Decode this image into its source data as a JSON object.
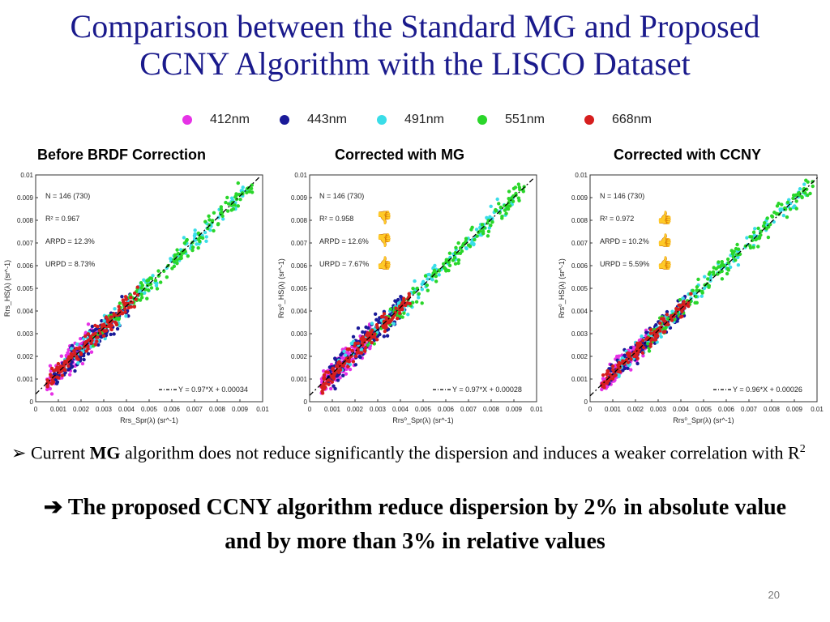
{
  "slide": {
    "title_line1": "Comparison between the Standard MG and Proposed",
    "title_line2": "CCNY Algorithm with the LISCO Dataset",
    "bullet_marker": "➢",
    "bullet_prefix": "Current ",
    "bullet_bold": "MG",
    "bullet_rest": " algorithm does not reduce significantly the dispersion and induces a weaker correlation with R",
    "bullet_sup": "2",
    "conclusion_arrow": "➔",
    "conclusion_text": "The proposed CCNY algorithm reduce dispersion by 2% in absolute value and by more than 3% in relative values",
    "page_number": "20"
  },
  "legend": [
    {
      "label": "412nm",
      "color": "#e632e6"
    },
    {
      "label": "443nm",
      "color": "#1a1a99"
    },
    {
      "label": "491nm",
      "color": "#3adde8"
    },
    {
      "label": "551nm",
      "color": "#2ad62a"
    },
    {
      "label": "668nm",
      "color": "#d61e1e"
    }
  ],
  "chart_data": [
    {
      "type": "scatter",
      "title": "Before BRDF Correction",
      "xlabel": "Rrs_Spr(λ) (sr^-1)",
      "ylabel": "Rrs_HS(λ) (sr^-1)",
      "xlim": [
        0,
        0.01
      ],
      "ylim": [
        0,
        0.01
      ],
      "xticks": [
        "0",
        "0.001",
        "0.002",
        "0.003",
        "0.004",
        "0.005",
        "0.006",
        "0.007",
        "0.008",
        "0.009",
        "0.01"
      ],
      "yticks": [
        "0",
        "0.001",
        "0.002",
        "0.003",
        "0.004",
        "0.005",
        "0.006",
        "0.007",
        "0.008",
        "0.009",
        "0.01"
      ],
      "stats": [
        "N = 146 (730)",
        "R² = 0.967",
        "ARPD = 12.3%",
        "URPD = 8.73%"
      ],
      "thumbs": [],
      "fit": {
        "label": "Y = 0.97*X + 0.00034",
        "slope": 0.97,
        "intercept": 0.00034
      },
      "series": [
        {
          "name": "412nm",
          "x_range": [
            0.0005,
            0.0027
          ],
          "spread": 0.00055,
          "count": 146
        },
        {
          "name": "443nm",
          "x_range": [
            0.0008,
            0.0042
          ],
          "spread": 0.0006,
          "count": 146
        },
        {
          "name": "491nm",
          "x_range": [
            0.0012,
            0.0095
          ],
          "spread": 0.00045,
          "count": 146
        },
        {
          "name": "551nm",
          "x_range": [
            0.0025,
            0.0098
          ],
          "spread": 0.0005,
          "count": 146
        },
        {
          "name": "668nm",
          "x_range": [
            0.0005,
            0.0045
          ],
          "spread": 0.0004,
          "count": 146
        }
      ]
    },
    {
      "type": "scatter",
      "title": "Corrected with MG",
      "xlabel": "Rrs⁰_Spr(λ) (sr^-1)",
      "ylabel": "Rrs⁰_HS(λ) (sr^-1)",
      "xlim": [
        0,
        0.01
      ],
      "ylim": [
        0,
        0.01
      ],
      "xticks": [
        "0",
        "0.001",
        "0.002",
        "0.003",
        "0.004",
        "0.005",
        "0.006",
        "0.007",
        "0.008",
        "0.009",
        "0.01"
      ],
      "yticks": [
        "0",
        "0.001",
        "0.002",
        "0.003",
        "0.004",
        "0.005",
        "0.006",
        "0.007",
        "0.008",
        "0.009",
        "0.01"
      ],
      "stats": [
        "N = 146 (730)",
        "R² = 0.958",
        "ARPD = 12.6%",
        "URPD = 7.67%"
      ],
      "thumbs": [
        "down",
        "down",
        "up"
      ],
      "fit": {
        "label": "Y = 0.97*X + 0.00028",
        "slope": 0.97,
        "intercept": 0.00028
      },
      "series": [
        {
          "name": "412nm",
          "x_range": [
            0.0005,
            0.0027
          ],
          "spread": 0.00055,
          "count": 146
        },
        {
          "name": "443nm",
          "x_range": [
            0.0008,
            0.0042
          ],
          "spread": 0.0006,
          "count": 146
        },
        {
          "name": "491nm",
          "x_range": [
            0.0012,
            0.009
          ],
          "spread": 0.00045,
          "count": 146
        },
        {
          "name": "551nm",
          "x_range": [
            0.0025,
            0.0095
          ],
          "spread": 0.0005,
          "count": 146
        },
        {
          "name": "668nm",
          "x_range": [
            0.0005,
            0.0045
          ],
          "spread": 0.0004,
          "count": 146
        }
      ]
    },
    {
      "type": "scatter",
      "title": "Corrected with CCNY",
      "xlabel": "Rrs⁰_Spr(λ) (sr^-1)",
      "ylabel": "Rrs⁰_HS(λ) (sr^-1)",
      "xlim": [
        0,
        0.01
      ],
      "ylim": [
        0,
        0.01
      ],
      "xticks": [
        "0",
        "0.001",
        "0.002",
        "0.003",
        "0.004",
        "0.005",
        "0.006",
        "0.007",
        "0.008",
        "0.009",
        "0.01"
      ],
      "yticks": [
        "0",
        "0.001",
        "0.002",
        "0.003",
        "0.004",
        "0.005",
        "0.006",
        "0.007",
        "0.008",
        "0.009",
        "0.01"
      ],
      "stats": [
        "N = 146 (730)",
        "R² = 0.972",
        "ARPD = 10.2%",
        "URPD = 5.59%"
      ],
      "thumbs": [
        "up",
        "up",
        "up"
      ],
      "fit": {
        "label": "Y = 0.96*X + 0.00026",
        "slope": 0.96,
        "intercept": 0.00026
      },
      "series": [
        {
          "name": "412nm",
          "x_range": [
            0.0005,
            0.0027
          ],
          "spread": 0.00045,
          "count": 146
        },
        {
          "name": "443nm",
          "x_range": [
            0.0008,
            0.0042
          ],
          "spread": 0.0005,
          "count": 146
        },
        {
          "name": "491nm",
          "x_range": [
            0.0012,
            0.0098
          ],
          "spread": 0.0004,
          "count": 146
        },
        {
          "name": "551nm",
          "x_range": [
            0.0025,
            0.0099
          ],
          "spread": 0.00045,
          "count": 146
        },
        {
          "name": "668nm",
          "x_range": [
            0.0005,
            0.0045
          ],
          "spread": 0.00035,
          "count": 146
        }
      ]
    }
  ]
}
